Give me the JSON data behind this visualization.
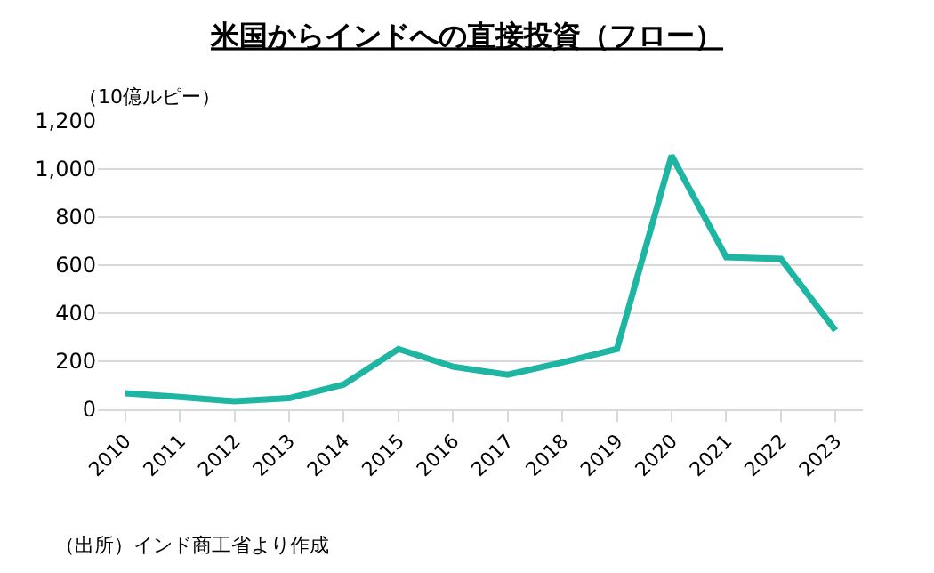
{
  "chart_data": {
    "type": "line",
    "title": "米国からインドへの直接投資（フロー）",
    "ylabel": "（10億ルピー）",
    "categories": [
      "2010",
      "2011",
      "2012",
      "2013",
      "2014",
      "2015",
      "2016",
      "2017",
      "2018",
      "2019",
      "2020",
      "2021",
      "2022",
      "2023"
    ],
    "series": [
      {
        "color": "#1fb5a3",
        "values": [
          67,
          51,
          33,
          46,
          103,
          251,
          177,
          144,
          195,
          251,
          1056,
          633,
          626,
          328
        ]
      }
    ],
    "ylim": [
      0,
      1200
    ],
    "yticks": [
      0,
      {
        "value": 200,
        "label": "200"
      },
      {
        "value": 400,
        "label": "400"
      },
      {
        "value": 600,
        "label": "600"
      },
      {
        "value": 800,
        "label": "800"
      },
      {
        "value": 1000,
        "label": "1,000"
      },
      {
        "value": 1200,
        "label": "1,200"
      }
    ],
    "grid": "y",
    "legend": false,
    "marker": "none",
    "line_style": "solid",
    "annotations": [
      "（出所）インド商工省より作成"
    ]
  }
}
